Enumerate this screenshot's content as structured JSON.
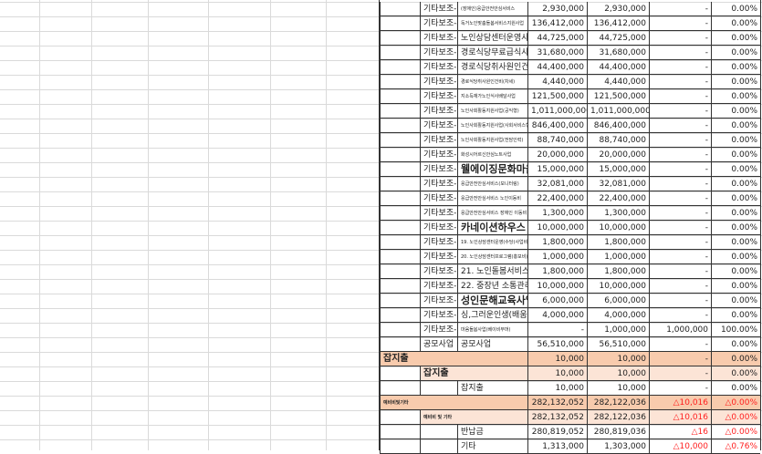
{
  "colors": {
    "level1_fill": "#f8cbad",
    "level2_fill": "#fce4d6",
    "negative_text": "#ff2020"
  },
  "rows": [
    {
      "a": "",
      "b": "기타보조-3",
      "c": "(장애인)응급안전안심서비스",
      "c_size": "tiny",
      "d": "2,930,000",
      "e": "2,930,000",
      "f": "-",
      "g": "0.00%"
    },
    {
      "a": "",
      "b": "기타보조-4",
      "c": "독거노인맞춤돌봄서비스지원사업",
      "c_size": "tiny",
      "d": "136,412,000",
      "e": "136,412,000",
      "f": "-",
      "g": "0.00%"
    },
    {
      "a": "",
      "b": "기타보조-5",
      "c": "노인상담센터운영사업",
      "d": "44,725,000",
      "e": "44,725,000",
      "f": "-",
      "g": "0.00%"
    },
    {
      "a": "",
      "b": "기타보조-6",
      "c": "경로식당무료급식사업",
      "d": "31,680,000",
      "e": "31,680,000",
      "f": "-",
      "g": "0.00%"
    },
    {
      "a": "",
      "b": "기타보조-7",
      "c": "경로식당취사원인건비",
      "d": "44,400,000",
      "e": "44,400,000",
      "f": "-",
      "g": "0.00%"
    },
    {
      "a": "",
      "b": "기타보조-8",
      "c": "경로식당취사원인건비(차세)",
      "c_size": "tiny",
      "d": "4,440,000",
      "e": "4,440,000",
      "f": "-",
      "g": "0.00%"
    },
    {
      "a": "",
      "b": "기타보조-9",
      "c": "지소득재가노인식사배달사업",
      "c_size": "tiny",
      "d": "121,500,000",
      "e": "121,500,000",
      "f": "-",
      "g": "0.00%"
    },
    {
      "a": "",
      "b": "기타보조-10",
      "c": "노인사회활동지원사업(공익형)",
      "c_size": "tiny",
      "d": "1,011,000,000",
      "e": "1,011,000,000",
      "f": "-",
      "g": "0.00%"
    },
    {
      "a": "",
      "b": "기타보조-11",
      "c": "노인사회활동지원사업(사회서비스형)",
      "c_size": "tiny",
      "d": "846,400,000",
      "e": "846,400,000",
      "f": "-",
      "g": "0.00%"
    },
    {
      "a": "",
      "b": "기타보조-12",
      "c": "노인사회활동지원사업(전담인력)",
      "c_size": "tiny",
      "d": "88,740,000",
      "e": "88,740,000",
      "f": "-",
      "g": "0.00%"
    },
    {
      "a": "",
      "b": "기타보조-13",
      "c": "화성시어르신안심노트사업",
      "c_size": "tiny",
      "d": "20,000,000",
      "e": "20,000,000",
      "f": "-",
      "g": "0.00%"
    },
    {
      "a": "",
      "b": "기타보조-14",
      "c": "웰에이징문화마을",
      "c_size": "big",
      "d": "15,000,000",
      "e": "15,000,000",
      "f": "-",
      "g": "0.00%"
    },
    {
      "a": "",
      "b": "기타보조-15",
      "c": "응급안전안심서비스(모니터링)",
      "c_size": "tiny",
      "d": "32,081,000",
      "e": "32,081,000",
      "f": "-",
      "g": "0.00%"
    },
    {
      "a": "",
      "b": "기타보조-16",
      "c": "응급안전안심서비스 노인이동비",
      "c_size": "tiny",
      "d": "22,400,000",
      "e": "22,400,000",
      "f": "-",
      "g": "0.00%"
    },
    {
      "a": "",
      "b": "기타보조-17",
      "c": "응급안전안심서비스 장애인 이동비",
      "c_size": "tiny",
      "d": "1,300,000",
      "e": "1,300,000",
      "f": "-",
      "g": "0.00%"
    },
    {
      "a": "",
      "b": "기타보조-18",
      "c": "카네이션하우스",
      "c_size": "big",
      "d": "10,000,000",
      "e": "10,000,000",
      "f": "-",
      "g": "0.00%"
    },
    {
      "a": "",
      "b": "기타보조-19",
      "c": "19. 노인상담센터운영(수당)사업비",
      "c_size": "tiny",
      "d": "1,800,000",
      "e": "1,800,000",
      "f": "-",
      "g": "0.00%"
    },
    {
      "a": "",
      "b": "기타보조-20",
      "c": "20. 노인상담센터프로그램(홍보비)",
      "c_size": "tiny",
      "d": "1,000,000",
      "e": "1,000,000",
      "f": "-",
      "g": "0.00%"
    },
    {
      "a": "",
      "b": "기타보조-21",
      "c": "21. 노인돌봄서비스워크숍",
      "d": "1,800,000",
      "e": "1,800,000",
      "f": "-",
      "g": "0.00%"
    },
    {
      "a": "",
      "b": "기타보조-22",
      "c": "22. 중장년 소통관리사",
      "d": "10,000,000",
      "e": "10,000,000",
      "f": "-",
      "g": "0.00%"
    },
    {
      "a": "",
      "b": "기타보조-23",
      "c": "성인문해교육사업",
      "c_size": "big",
      "d": "6,000,000",
      "e": "6,000,000",
      "f": "-",
      "g": "0.00%"
    },
    {
      "a": "",
      "b": "기타보조-24",
      "c": "싱,그러운인생(배움터)",
      "d": "4,000,000",
      "e": "4,000,000",
      "f": "-",
      "g": "0.00%"
    },
    {
      "a": "",
      "b": "기타보조-25",
      "c": "마음돌봄사업(베이비부머)",
      "c_size": "tiny",
      "d": "-",
      "e": "1,000,000",
      "f": "1,000,000",
      "g": "100.00%"
    },
    {
      "a": "",
      "b": "공모사업",
      "c": "공모사업",
      "d": "56,510,000",
      "e": "56,510,000",
      "f": "-",
      "g": "0.00%"
    },
    {
      "level": 1,
      "a": "잡지출",
      "d": "10,000",
      "e": "10,000",
      "f": "-",
      "g": "0.00%"
    },
    {
      "level": 2,
      "a": "",
      "b": "잡지출",
      "d": "10,000",
      "e": "10,000",
      "f": "-",
      "g": "0.00%"
    },
    {
      "a": "",
      "b": "",
      "c": "잡지출",
      "d": "10,000",
      "e": "10,000",
      "f": "-",
      "g": "0.00%"
    },
    {
      "level": 1,
      "a": "예비비및기타",
      "a_size": "tiny",
      "d": "282,132,052",
      "e": "282,122,036",
      "f": "△10,016",
      "g": "△0.00%",
      "neg": true
    },
    {
      "level": 2,
      "a": "",
      "b": "예비비 및 기타",
      "b_size": "tiny",
      "d": "282,132,052",
      "e": "282,122,036",
      "f": "△10,016",
      "g": "△0.00%",
      "neg": true
    },
    {
      "a": "",
      "b": "",
      "c": "반납금",
      "d": "280,819,052",
      "e": "280,819,036",
      "f": "△16",
      "g": "△0.00%",
      "neg": true
    },
    {
      "a": "",
      "b": "",
      "c": "기타",
      "d": "1,313,000",
      "e": "1,303,000",
      "f": "△10,000",
      "g": "△0.76%",
      "neg": true
    }
  ]
}
